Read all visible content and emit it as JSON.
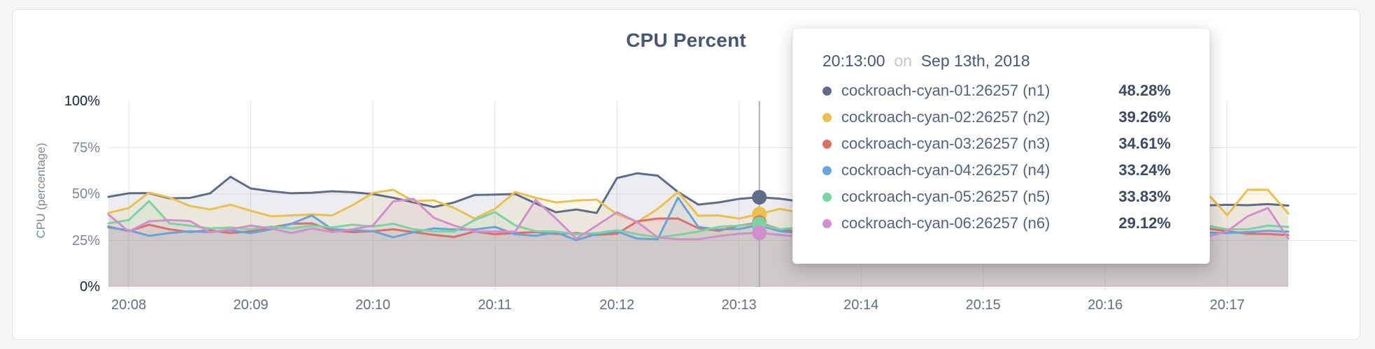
{
  "page": {
    "background": "#f5f5f6"
  },
  "card": {
    "background": "#ffffff",
    "border_color": "#e4e4e6",
    "title": "CPU Percent",
    "title_color": "#475872"
  },
  "y_axis_title": "CPU (percentage)",
  "chart_data": {
    "type": "line",
    "title": "CPU Percent",
    "xlabel": "",
    "ylabel": "CPU (percentage)",
    "ylim": [
      0,
      100
    ],
    "grid": "on",
    "legend_position": "tooltip",
    "y_ticks": [
      {
        "label": "0%",
        "value": 0,
        "emphasis": true
      },
      {
        "label": "25%",
        "value": 25,
        "emphasis": false
      },
      {
        "label": "50%",
        "value": 50,
        "emphasis": false
      },
      {
        "label": "75%",
        "value": 75,
        "emphasis": false
      },
      {
        "label": "100%",
        "value": 100,
        "emphasis": true
      }
    ],
    "x_ticks": {
      "labels": [
        "20:08",
        "20:09",
        "20:10",
        "20:11",
        "20:12",
        "20:13",
        "20:14",
        "20:15",
        "20:16",
        "20:17"
      ],
      "indices": [
        1,
        7,
        13,
        19,
        25,
        31,
        37,
        43,
        49,
        55
      ]
    },
    "hover": {
      "index": 32,
      "line_color": "#a9adb3"
    },
    "fill_opacity": 0.12,
    "series": [
      {
        "name": "cockroach-cyan-01:26257 (n1)",
        "color": "#5f6c87",
        "hover_value": 48.28,
        "values": [
          48.5,
          50.4,
          50.5,
          47.7,
          47.9,
          50.4,
          59.3,
          53.0,
          51.5,
          50.4,
          50.7,
          51.5,
          51.0,
          50.0,
          48.0,
          45.5,
          43.0,
          45.5,
          49.5,
          49.7,
          50.0,
          45.0,
          40.2,
          41.7,
          39.8,
          58.6,
          61.2,
          59.9,
          51.1,
          44.3,
          45.5,
          47.4,
          48.28,
          47.5,
          46.0,
          47.0,
          45.5,
          46.5,
          45.0,
          46.0,
          45.0,
          46.5,
          45.5,
          44.5,
          45.5,
          44.5,
          45.0,
          44.0,
          44.5,
          43.8,
          44.2,
          43.9,
          44.1,
          44.0,
          43.9,
          44.2,
          44.0,
          44.6,
          43.8
        ]
      },
      {
        "name": "cockroach-cyan-02:26257 (n2)",
        "color": "#ecc04f",
        "hover_value": 39.26,
        "values": [
          39.8,
          42.5,
          50.8,
          48.1,
          43.6,
          41.7,
          44.3,
          41.0,
          38.0,
          38.5,
          39.0,
          38.5,
          44.0,
          50.6,
          52.3,
          46.2,
          46.6,
          42.5,
          36.8,
          42.0,
          51.1,
          48.0,
          45.5,
          46.5,
          47.0,
          39.1,
          34.9,
          42.0,
          51.1,
          38.3,
          38.5,
          36.8,
          39.26,
          42.0,
          40.0,
          43.5,
          41.0,
          39.5,
          42.5,
          44.0,
          41.0,
          39.0,
          42.0,
          40.5,
          43.0,
          41.5,
          39.5,
          42.5,
          44.5,
          42.0,
          40.0,
          43.0,
          47.0,
          53.5,
          50.5,
          38.7,
          52.3,
          52.3,
          39.5
        ]
      },
      {
        "name": "cockroach-cyan-03:26257 (n3)",
        "color": "#dd6f6b",
        "hover_value": 34.61,
        "values": [
          32.5,
          30.0,
          33.5,
          31.0,
          29.5,
          30.5,
          29.0,
          30.0,
          32.0,
          34.0,
          34.2,
          30.5,
          29.5,
          30.0,
          31.0,
          29.5,
          28.0,
          26.9,
          29.8,
          28.4,
          29.0,
          29.5,
          28.5,
          29.0,
          28.0,
          28.6,
          35.3,
          36.8,
          36.8,
          31.6,
          30.2,
          33.0,
          34.61,
          31.0,
          29.5,
          31.5,
          30.0,
          29.0,
          31.0,
          30.0,
          28.5,
          30.5,
          29.5,
          31.0,
          29.0,
          30.5,
          29.5,
          28.5,
          30.0,
          31.0,
          29.5,
          30.0,
          31.0,
          31.2,
          31.5,
          30.0,
          28.6,
          28.5,
          27.9
        ]
      },
      {
        "name": "cockroach-cyan-04:26257 (n4)",
        "color": "#68a3d9",
        "hover_value": 33.24,
        "values": [
          32.0,
          30.5,
          27.5,
          29.0,
          30.0,
          29.5,
          30.5,
          29.0,
          31.0,
          34.0,
          38.5,
          31.0,
          30.5,
          30.0,
          26.7,
          29.5,
          31.5,
          30.9,
          30.9,
          32.3,
          28.4,
          27.5,
          29.4,
          25.2,
          28.4,
          29.8,
          26.0,
          25.6,
          48.1,
          32.3,
          30.9,
          31.2,
          33.24,
          30.0,
          29.0,
          30.5,
          29.5,
          30.0,
          29.0,
          30.5,
          29.5,
          28.5,
          30.0,
          29.0,
          30.0,
          29.5,
          28.5,
          29.5,
          30.0,
          29.0,
          29.5,
          30.0,
          29.0,
          29.8,
          29.3,
          29.0,
          29.5,
          30.2,
          29.7
        ]
      },
      {
        "name": "cockroach-cyan-05:26257 (n5)",
        "color": "#7cd2a0",
        "hover_value": 33.83,
        "values": [
          34.2,
          36.0,
          46.2,
          34.2,
          33.0,
          31.5,
          32.0,
          31.0,
          32.5,
          31.5,
          33.0,
          32.0,
          33.5,
          32.5,
          34.0,
          31.0,
          30.0,
          29.8,
          36.0,
          40.3,
          33.1,
          30.0,
          29.8,
          28.4,
          29.0,
          30.5,
          28.4,
          26.7,
          28.0,
          29.8,
          32.3,
          33.0,
          33.83,
          31.0,
          32.0,
          30.5,
          31.5,
          30.0,
          31.0,
          32.5,
          31.0,
          30.0,
          32.0,
          31.0,
          30.5,
          32.0,
          40.0,
          36.0,
          32.0,
          31.0,
          32.5,
          31.5,
          33.0,
          35.3,
          33.0,
          31.0,
          31.0,
          33.0,
          32.3
        ]
      },
      {
        "name": "cockroach-cyan-06:26257 (n6)",
        "color": "#d18fcc",
        "hover_value": 29.12,
        "values": [
          39.0,
          29.8,
          35.3,
          36.0,
          35.5,
          29.4,
          31.0,
          33.0,
          31.5,
          29.0,
          31.5,
          29.5,
          31.0,
          33.0,
          46.0,
          47.4,
          37.2,
          33.0,
          29.8,
          29.8,
          29.8,
          46.8,
          36.8,
          26.0,
          33.0,
          40.2,
          34.9,
          26.7,
          25.6,
          25.6,
          27.4,
          28.6,
          29.12,
          28.0,
          27.0,
          28.5,
          27.5,
          28.0,
          27.0,
          28.5,
          27.5,
          28.0,
          27.0,
          28.0,
          27.5,
          28.0,
          27.0,
          28.5,
          27.5,
          28.0,
          27.0,
          28.0,
          26.5,
          26.0,
          27.0,
          30.0,
          38.0,
          42.5,
          26.0
        ]
      }
    ]
  },
  "tooltip": {
    "time": "20:13:00",
    "conjunction": "on",
    "date": "Sep 13th, 2018",
    "rows": [
      {
        "label": "cockroach-cyan-01:26257 (n1)",
        "value": "48.28%"
      },
      {
        "label": "cockroach-cyan-02:26257 (n2)",
        "value": "39.26%"
      },
      {
        "label": "cockroach-cyan-03:26257 (n3)",
        "value": "34.61%"
      },
      {
        "label": "cockroach-cyan-04:26257 (n4)",
        "value": "33.24%"
      },
      {
        "label": "cockroach-cyan-05:26257 (n5)",
        "value": "33.83%"
      },
      {
        "label": "cockroach-cyan-06:26257 (n6)",
        "value": "29.12%"
      }
    ]
  }
}
